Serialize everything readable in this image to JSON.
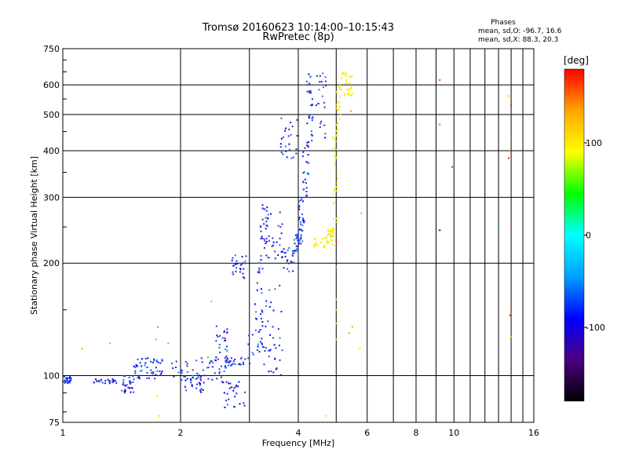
{
  "header": {
    "title": "Tromsø 20160623 10:14:00–10:15:43",
    "subtitle": "RwPretec (8p)"
  },
  "stats": {
    "heading": "Phases",
    "line1": "mean, sd,O: -96.7, 16.6",
    "line2": "mean, sd,X:  88.3, 20.3"
  },
  "chart_data": {
    "type": "scatter",
    "xlabel": "Frequency [MHz]",
    "ylabel": "Stationary phase Virtual Height [km]",
    "x_scale": "log",
    "y_scale": "log",
    "xlim": [
      1,
      16
    ],
    "ylim": [
      75,
      750
    ],
    "grid": true,
    "x_ticks": [
      1,
      2,
      4,
      6,
      8,
      10,
      16
    ],
    "y_ticks": [
      75,
      100,
      200,
      300,
      400,
      500,
      600,
      750
    ],
    "colorbar": {
      "label": "[deg]",
      "range": [
        -180,
        180
      ],
      "ticks": [
        100,
        0,
        -100
      ],
      "colors": [
        "#000000",
        "#4b0082",
        "#0000ff",
        "#00a0ff",
        "#00ffff",
        "#00ff00",
        "#ffff00",
        "#ffa500",
        "#ff0000"
      ]
    },
    "series": [
      {
        "mode": "O",
        "phase_deg": -96.7,
        "color": "#1535e0",
        "segments": [
          {
            "f": [
              1.0,
              1.05
            ],
            "h": [
              95,
              100
            ]
          },
          {
            "f": [
              1.2,
              1.38
            ],
            "h": [
              95,
              98
            ]
          },
          {
            "f": [
              1.4,
              1.52
            ],
            "h": [
              90,
              100
            ]
          },
          {
            "f": [
              1.5,
              1.8
            ],
            "h": [
              98,
              104
            ]
          },
          {
            "f": [
              1.52,
              1.8
            ],
            "h": [
              105,
              112
            ]
          },
          {
            "f": [
              1.9,
              2.3
            ],
            "h": [
              96,
              112
            ]
          },
          {
            "f": [
              2.05,
              2.3
            ],
            "h": [
              90,
              100
            ]
          },
          {
            "f": [
              2.3,
              2.65
            ],
            "h": [
              96,
              110
            ]
          },
          {
            "f": [
              2.45,
              2.65
            ],
            "h": [
              110,
              138
            ]
          },
          {
            "f": [
              2.55,
              2.95
            ],
            "h": [
              82,
              98
            ]
          },
          {
            "f": [
              2.6,
              2.95
            ],
            "h": [
              106,
              112
            ]
          },
          {
            "f": [
              2.7,
              2.95
            ],
            "h": [
              182,
              210
            ]
          },
          {
            "f": [
              2.95,
              3.5
            ],
            "h": [
              107,
              130
            ]
          },
          {
            "f": [
              3.1,
              3.25
            ],
            "h": [
              115,
              205
            ]
          },
          {
            "f": [
              3.2,
              3.35
            ],
            "h": [
              200,
              290
            ]
          },
          {
            "f": [
              3.3,
              3.65
            ],
            "h": [
              100,
              180
            ]
          },
          {
            "f": [
              3.3,
              3.65
            ],
            "h": [
              205,
              275
            ]
          },
          {
            "f": [
              3.6,
              4.0
            ],
            "h": [
              190,
              220
            ]
          },
          {
            "f": [
              3.9,
              4.1
            ],
            "h": [
              215,
              240
            ]
          },
          {
            "f": [
              4.0,
              4.15
            ],
            "h": [
              240,
              300
            ]
          },
          {
            "f": [
              4.1,
              4.25
            ],
            "h": [
              300,
              420
            ]
          },
          {
            "f": [
              4.2,
              4.35
            ],
            "h": [
              420,
              650
            ]
          },
          {
            "f": [
              3.6,
              4.0
            ],
            "h": [
              380,
              490
            ]
          },
          {
            "f": [
              4.3,
              4.75
            ],
            "h": [
              430,
              650
            ]
          }
        ]
      },
      {
        "mode": "X",
        "phase_deg": 88.3,
        "color": "#e9f000",
        "segments": [
          {
            "f": [
              4.35,
              4.95
            ],
            "h": [
              220,
              235
            ]
          },
          {
            "f": [
              4.75,
              4.95
            ],
            "h": [
              235,
              250
            ]
          },
          {
            "f": [
              4.9,
              5.05
            ],
            "h": [
              250,
              440
            ]
          },
          {
            "f": [
              5.0,
              5.15
            ],
            "h": [
              440,
              600
            ]
          },
          {
            "f": [
              5.15,
              5.5
            ],
            "h": [
              560,
              650
            ]
          }
        ]
      }
    ],
    "scattered_points": [
      {
        "f": 1.12,
        "h": 118,
        "c": "#ffa500"
      },
      {
        "f": 1.32,
        "h": 122,
        "c": "#ffa500"
      },
      {
        "f": 1.73,
        "h": 125,
        "c": "#ff8c00"
      },
      {
        "f": 1.75,
        "h": 135,
        "c": "#ff6a00"
      },
      {
        "f": 1.76,
        "h": 78,
        "c": "#ffdd00"
      },
      {
        "f": 1.74,
        "h": 88,
        "c": "#ffdd00"
      },
      {
        "f": 1.86,
        "h": 122,
        "c": "#ff8c00"
      },
      {
        "f": 2.15,
        "h": 100,
        "c": "#00cc66"
      },
      {
        "f": 2.35,
        "h": 112,
        "c": "#00ff00"
      },
      {
        "f": 2.4,
        "h": 158,
        "c": "#ffa500"
      },
      {
        "f": 5.0,
        "h": 230,
        "c": "#ff4500"
      },
      {
        "f": 5.0,
        "h": 195,
        "c": "#ff8c00"
      },
      {
        "f": 5.0,
        "h": 160,
        "c": "#ffdd00"
      },
      {
        "f": 5.0,
        "h": 150,
        "c": "#ffdd00"
      },
      {
        "f": 5.0,
        "h": 138,
        "c": "#ffdd00"
      },
      {
        "f": 5.0,
        "h": 125,
        "c": "#ffdd00"
      },
      {
        "f": 5.4,
        "h": 130,
        "c": "#ffa500"
      },
      {
        "f": 5.5,
        "h": 135,
        "c": "#ffa500"
      },
      {
        "f": 5.75,
        "h": 118,
        "c": "#ffdd00"
      },
      {
        "f": 5.8,
        "h": 272,
        "c": "#ffa500"
      },
      {
        "f": 4.7,
        "h": 78,
        "c": "#ffdd00"
      },
      {
        "f": 5.45,
        "h": 510,
        "c": "#ff8c00"
      },
      {
        "f": 9.2,
        "h": 618,
        "c": "#ff4500"
      },
      {
        "f": 9.2,
        "h": 470,
        "c": "#ff6a00"
      },
      {
        "f": 9.2,
        "h": 245,
        "c": "#0000ff"
      },
      {
        "f": 9.9,
        "h": 362,
        "c": "#0070ff"
      },
      {
        "f": 13.8,
        "h": 560,
        "c": "#ffd000"
      },
      {
        "f": 14.0,
        "h": 530,
        "c": "#ff2000"
      },
      {
        "f": 14.0,
        "h": 435,
        "c": "#ff6a00"
      },
      {
        "f": 13.9,
        "h": 400,
        "c": "#ff8c00"
      },
      {
        "f": 13.8,
        "h": 382,
        "c": "#ff2000"
      },
      {
        "f": 14.0,
        "h": 250,
        "c": "#ff4500"
      },
      {
        "f": 14.0,
        "h": 148,
        "c": "#ff6a00"
      },
      {
        "f": 13.9,
        "h": 145,
        "c": "#ff4500"
      },
      {
        "f": 14.0,
        "h": 127,
        "c": "#ffa500"
      }
    ]
  }
}
